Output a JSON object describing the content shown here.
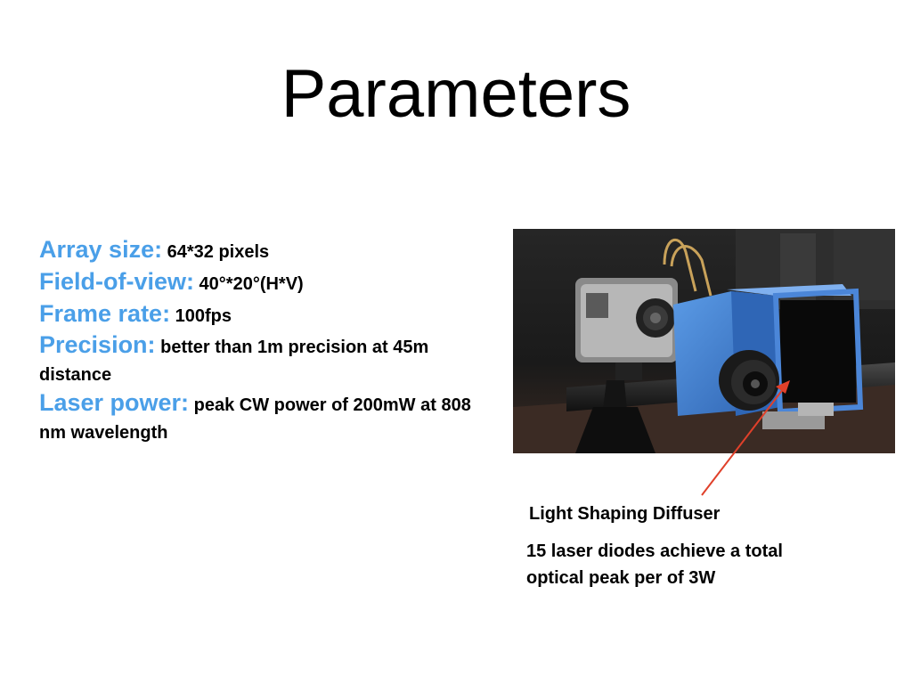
{
  "slide": {
    "title": "Parameters",
    "params": [
      {
        "label": "Array size:",
        "value": " 64*32 pixels"
      },
      {
        "label": "Field-of-view:",
        "value": "  40°*20°(H*V)"
      },
      {
        "label": "Frame rate:",
        "value": " 100fps"
      },
      {
        "label": "Precision:",
        "value": " better than 1m precision at 45m distance"
      },
      {
        "label": "Laser power:",
        "value": " peak CW power of 200mW at 808 nm wavelength"
      }
    ],
    "captions": {
      "diffuser": "Light Shaping Diffuser",
      "diodes": "15 laser diodes achieve a total optical peak per of 3W"
    },
    "photo": {
      "description_icon": "lidar-camera-rig-photo",
      "colors": {
        "housing": "#3F7FD0",
        "arrow": "#E0402A",
        "label_color": "#4A9FE8"
      }
    }
  }
}
